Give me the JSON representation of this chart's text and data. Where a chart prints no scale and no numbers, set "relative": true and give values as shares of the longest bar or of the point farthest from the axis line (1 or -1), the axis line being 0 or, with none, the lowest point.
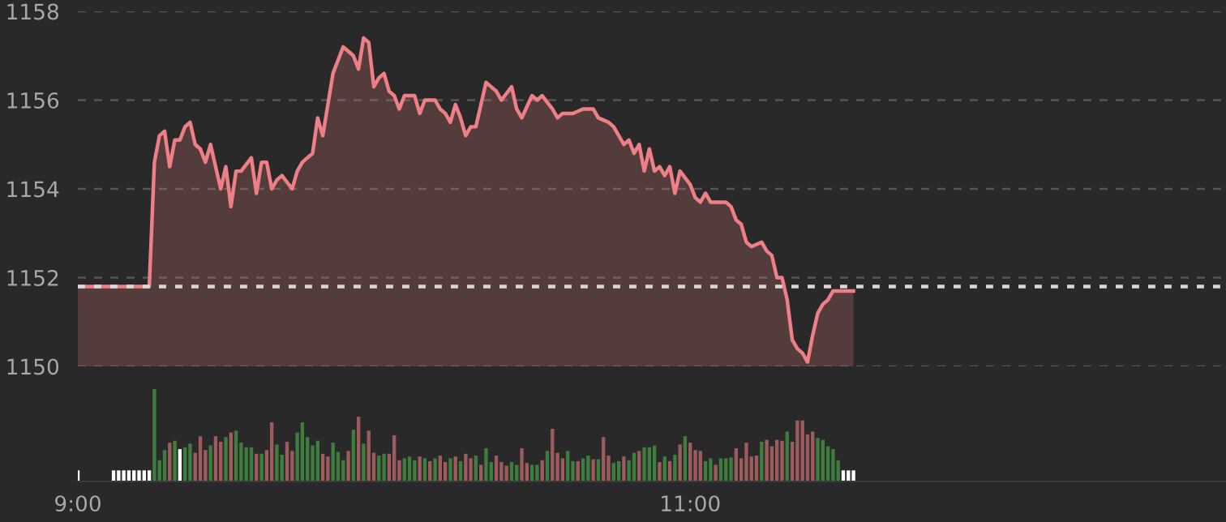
{
  "chart_data": [
    {
      "type": "area",
      "grid": "y",
      "tick_labels": "y",
      "xlim": [
        9,
        12.75
      ],
      "ylim": [
        1150,
        1158
      ],
      "yticks": [
        1150,
        1152,
        1154,
        1156,
        1158
      ],
      "ref_lines": [
        {
          "axis": "y",
          "value": 1151.8,
          "color": "#d8d8d8",
          "line_style": "dotted"
        }
      ],
      "series": [
        {
          "color": "#ee7f86",
          "x": [
            9,
            9.2333,
            9.25,
            9.2667,
            9.2833,
            9.3,
            9.3167,
            9.3333,
            9.35,
            9.3667,
            9.3833,
            9.4,
            9.4167,
            9.4333,
            9.45,
            9.4667,
            9.4833,
            9.5,
            9.5167,
            9.5333,
            9.5667,
            9.5833,
            9.6,
            9.6167,
            9.6333,
            9.65,
            9.6667,
            9.7,
            9.7167,
            9.7333,
            9.75,
            9.7667,
            9.7833,
            9.8,
            9.8333,
            9.8667,
            9.8833,
            9.9,
            9.9167,
            9.9333,
            9.95,
            9.9667,
            9.9833,
            10,
            10.0167,
            10.0333,
            10.05,
            10.0667,
            10.1,
            10.1167,
            10.1333,
            10.1667,
            10.1833,
            10.2,
            10.2167,
            10.2333,
            10.25,
            10.2667,
            10.2833,
            10.3,
            10.3333,
            10.35,
            10.3667,
            10.3833,
            10.4167,
            10.4333,
            10.45,
            10.4833,
            10.5,
            10.5167,
            10.55,
            10.5667,
            10.5833,
            10.6167,
            10.65,
            10.6833,
            10.7,
            10.7333,
            10.75,
            10.7833,
            10.8,
            10.8167,
            10.8333,
            10.85,
            10.8667,
            10.8833,
            10.9,
            10.9167,
            10.9333,
            10.95,
            10.9667,
            11,
            11.0167,
            11.0333,
            11.05,
            11.0667,
            11.0833,
            11.1167,
            11.1333,
            11.15,
            11.1667,
            11.1833,
            11.2,
            11.2333,
            11.25,
            11.2667,
            11.2833,
            11.3,
            11.3167,
            11.3333,
            11.35,
            11.3667,
            11.3833,
            11.4,
            11.4167,
            11.4333,
            11.45,
            11.4667,
            11.4833,
            11.5333
          ],
          "values": [
            1151.8,
            1151.8,
            1154.6,
            1155.2,
            1155.3,
            1154.5,
            1155.1,
            1155.1,
            1155.4,
            1155.5,
            1155.0,
            1154.9,
            1154.6,
            1155.0,
            1154.5,
            1154.0,
            1154.5,
            1153.6,
            1154.4,
            1154.4,
            1154.7,
            1153.9,
            1154.6,
            1154.6,
            1154.0,
            1154.2,
            1154.3,
            1154.0,
            1154.4,
            1154.6,
            1154.7,
            1154.8,
            1155.6,
            1155.2,
            1156.6,
            1157.2,
            1157.1,
            1157.0,
            1156.7,
            1157.4,
            1157.3,
            1156.3,
            1156.5,
            1156.6,
            1156.2,
            1156.1,
            1155.8,
            1156.1,
            1156.1,
            1155.7,
            1156.0,
            1156.0,
            1155.8,
            1155.7,
            1155.5,
            1155.9,
            1155.6,
            1155.2,
            1155.4,
            1155.4,
            1156.4,
            1156.3,
            1156.2,
            1156.0,
            1156.3,
            1155.8,
            1155.6,
            1156.1,
            1156.0,
            1156.1,
            1155.8,
            1155.6,
            1155.7,
            1155.7,
            1155.8,
            1155.8,
            1155.6,
            1155.5,
            1155.4,
            1155.0,
            1155.1,
            1154.8,
            1155.0,
            1154.4,
            1154.9,
            1154.4,
            1154.5,
            1154.3,
            1154.5,
            1153.9,
            1154.4,
            1154.1,
            1153.8,
            1153.7,
            1153.9,
            1153.7,
            1153.7,
            1153.7,
            1153.6,
            1153.3,
            1153.2,
            1152.8,
            1152.7,
            1152.8,
            1152.6,
            1152.5,
            1152.0,
            1152.0,
            1151.5,
            1150.6,
            1150.4,
            1150.3,
            1150.1,
            1150.7,
            1151.2,
            1151.4,
            1151.5,
            1151.7,
            1151.7,
            1151.7
          ]
        }
      ]
    },
    {
      "type": "bar",
      "relative": true,
      "tick_labels": "x",
      "xlim": [
        9,
        12.75
      ],
      "xticks": [
        {
          "value": 9,
          "label": "9:00"
        },
        {
          "value": 11,
          "label": "11:00"
        }
      ],
      "series": [
        {
          "color": "#3f7d3f",
          "x": [
            9.25,
            9.2667,
            9.2833,
            9.3167,
            9.35,
            9.3667,
            9.4333,
            9.4833,
            9.5167,
            9.5333,
            9.55,
            9.5667,
            9.6,
            9.65,
            9.6667,
            9.7167,
            9.7333,
            9.75,
            9.7667,
            9.7833,
            9.8333,
            9.85,
            9.8667,
            9.9,
            9.9333,
            9.9833,
            10,
            10.0667,
            10.0833,
            10.1,
            10.1333,
            10.1667,
            10.2167,
            10.25,
            10.3,
            10.3333,
            10.35,
            10.4167,
            10.4333,
            10.4833,
            10.5,
            10.5333,
            10.6,
            10.6167,
            10.65,
            10.6667,
            10.7,
            10.75,
            10.7667,
            10.8,
            10.8167,
            10.85,
            10.8667,
            10.8833,
            10.9167,
            10.95,
            10.9833,
            11.05,
            11.0667,
            11.1,
            11.1167,
            11.1333,
            11.2333,
            11.3167,
            11.4167,
            11.4333,
            11.45,
            11.4667,
            11.4833
          ],
          "values": [
            1.0,
            0.23,
            0.34,
            0.44,
            0.37,
            0.41,
            0.39,
            0.48,
            0.55,
            0.42,
            0.37,
            0.37,
            0.3,
            0.4,
            0.29,
            0.53,
            0.64,
            0.48,
            0.39,
            0.44,
            0.42,
            0.32,
            0.23,
            0.56,
            0.41,
            0.28,
            0.3,
            0.25,
            0.27,
            0.23,
            0.25,
            0.25,
            0.25,
            0.22,
            0.28,
            0.36,
            0.21,
            0.21,
            0.18,
            0.18,
            0.18,
            0.33,
            0.33,
            0.22,
            0.25,
            0.28,
            0.24,
            0.2,
            0.22,
            0.23,
            0.31,
            0.37,
            0.37,
            0.39,
            0.27,
            0.29,
            0.49,
            0.22,
            0.25,
            0.25,
            0.25,
            0.26,
            0.43,
            0.54,
            0.47,
            0.45,
            0.38,
            0.35,
            0.23
          ]
        },
        {
          "color": "#9e5b5e",
          "x": [
            9.3,
            9.3833,
            9.4,
            9.4167,
            9.45,
            9.4667,
            9.5,
            9.5833,
            9.6167,
            9.6333,
            9.6833,
            9.7,
            9.8,
            9.8167,
            9.8833,
            9.9167,
            9.95,
            9.9667,
            10.0167,
            10.0333,
            10.05,
            10.1167,
            10.15,
            10.1833,
            10.2,
            10.2333,
            10.2667,
            10.2833,
            10.3167,
            10.3667,
            10.3833,
            10.4,
            10.45,
            10.4667,
            10.5167,
            10.55,
            10.5667,
            10.5833,
            10.6333,
            10.6833,
            10.7167,
            10.7333,
            10.7833,
            10.8333,
            10.9,
            10.9333,
            10.9667,
            11,
            11.0167,
            11.0333,
            11.0833,
            11.15,
            11.1667,
            11.1833,
            11.2,
            11.2167,
            11.25,
            11.2667,
            11.2833,
            11.3,
            11.3333,
            11.35,
            11.3667,
            11.3833,
            11.4
          ],
          "values": [
            0.42,
            0.31,
            0.49,
            0.34,
            0.49,
            0.43,
            0.53,
            0.3,
            0.34,
            0.64,
            0.43,
            0.33,
            0.3,
            0.27,
            0.33,
            0.7,
            0.55,
            0.31,
            0.3,
            0.5,
            0.23,
            0.27,
            0.22,
            0.28,
            0.21,
            0.27,
            0.3,
            0.25,
            0.18,
            0.28,
            0.21,
            0.17,
            0.36,
            0.2,
            0.23,
            0.57,
            0.31,
            0.25,
            0.22,
            0.24,
            0.48,
            0.28,
            0.27,
            0.33,
            0.21,
            0.22,
            0.4,
            0.42,
            0.34,
            0.33,
            0.18,
            0.36,
            0.25,
            0.42,
            0.27,
            0.28,
            0.45,
            0.38,
            0.45,
            0.44,
            0.43,
            0.66,
            0.66,
            0.51,
            0.54
          ]
        },
        {
          "color": "#ffffff",
          "x": [
            9,
            9.1167,
            9.1333,
            9.15,
            9.1667,
            9.1833,
            9.2,
            9.2167,
            9.2333,
            9.3333,
            11.5,
            11.5167,
            11.5333
          ],
          "values": [
            0.12,
            0.12,
            0.12,
            0.12,
            0.12,
            0.12,
            0.12,
            0.12,
            0.12,
            0.35,
            0.12,
            0.12,
            0.12
          ]
        }
      ]
    }
  ]
}
